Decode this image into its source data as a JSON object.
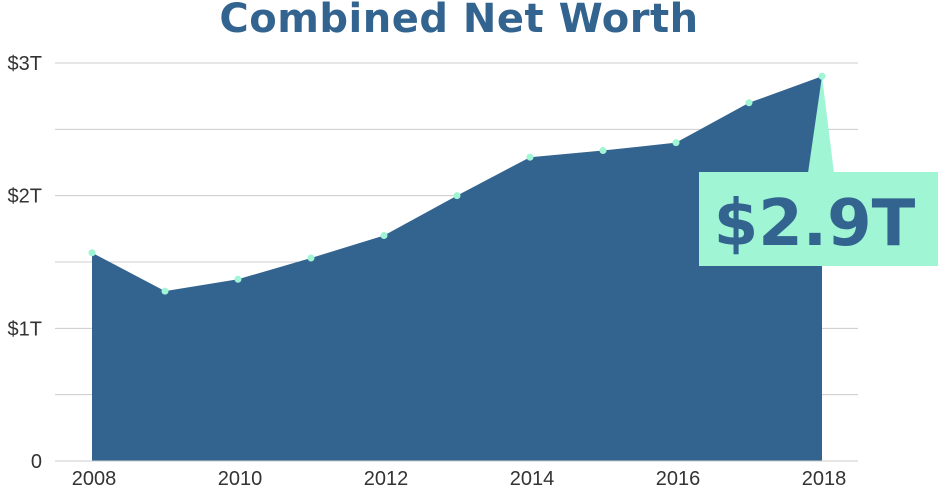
{
  "chart_data": {
    "type": "area",
    "title": "Combined Net Worth",
    "x": [
      2008,
      2009,
      2010,
      2011,
      2012,
      2013,
      2014,
      2015,
      2016,
      2017,
      2018
    ],
    "values": [
      1.57,
      1.28,
      1.37,
      1.53,
      1.7,
      2.0,
      2.29,
      2.34,
      2.4,
      2.7,
      2.9
    ],
    "unit": "trillion USD",
    "x_tick_labels": [
      "2008",
      "2010",
      "2012",
      "2014",
      "2016",
      "2018"
    ],
    "y_tick_labels": [
      "0",
      "$1T",
      "$2T",
      "$3T"
    ],
    "ylim": [
      0,
      3
    ],
    "grid": true,
    "legend": "none",
    "callout": {
      "label": "$2.9T",
      "x": 2018,
      "value": 2.9
    },
    "colors": {
      "title": "#33648f",
      "area": "#33648f",
      "marker": "#a0f5d5",
      "callout_bg": "#a0f5d5",
      "callout_text": "#33648f",
      "grid": "#cccccc",
      "tick_text": "#333333"
    }
  }
}
